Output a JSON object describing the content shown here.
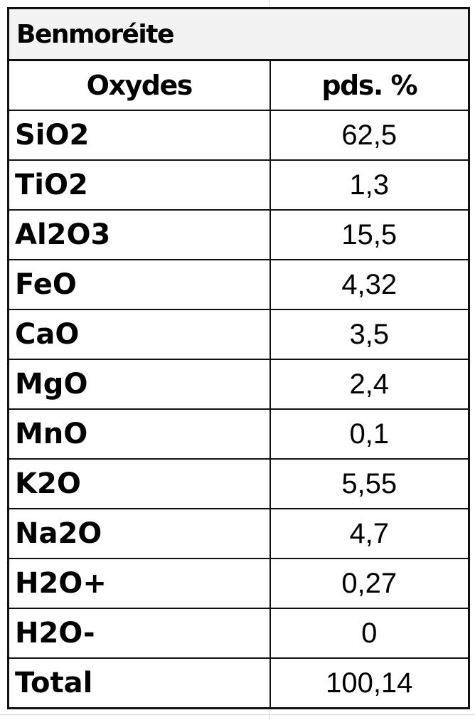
{
  "table": {
    "title": "Benmoréite",
    "headers": [
      "Oxydes",
      "pds. %"
    ],
    "rows": [
      {
        "oxide": "SiO2",
        "value": "62,5"
      },
      {
        "oxide": "TiO2",
        "value": "1,3"
      },
      {
        "oxide": "Al2O3",
        "value": "15,5"
      },
      {
        "oxide": "FeO",
        "value": "4,32"
      },
      {
        "oxide": "CaO",
        "value": "3,5"
      },
      {
        "oxide": "MgO",
        "value": "2,4"
      },
      {
        "oxide": "MnO",
        "value": "0,1"
      },
      {
        "oxide": "K2O",
        "value": "5,55"
      },
      {
        "oxide": "Na2O",
        "value": "4,7"
      },
      {
        "oxide": "H2O+",
        "value": "0,27"
      },
      {
        "oxide": "H2O-",
        "value": "0"
      },
      {
        "oxide": "Total",
        "value": "100,14"
      }
    ]
  }
}
